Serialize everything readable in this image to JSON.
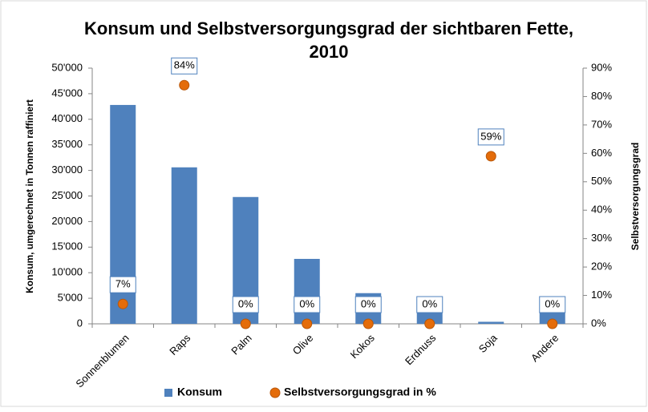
{
  "chart_data": {
    "type": "bar",
    "title": [
      "Konsum und Selbstversorgungsgrad der sichtbaren Fette,",
      "2010"
    ],
    "ylabel": "Konsum, umgerechnet in Tonnen raffiniert",
    "y2label": "Selbstversorgungsgrad",
    "categories": [
      "Sonnenblumen",
      "Raps",
      "Palm",
      "Olive",
      "Kokos",
      "Erdnuss",
      "Soja",
      "Andere"
    ],
    "series": [
      {
        "name": "Konsum",
        "color": "#4f81bd",
        "values": [
          42800,
          30600,
          24800,
          12700,
          6000,
          5300,
          400,
          4900
        ]
      },
      {
        "name": "Selbstversorgungsgrad in %",
        "color": "#e46c0a",
        "axis": "y2",
        "values": [
          7,
          84,
          0,
          0,
          0,
          0,
          59,
          0
        ],
        "value_labels": [
          "7%",
          "84%",
          "0%",
          "0%",
          "0%",
          "0%",
          "59%",
          "0%"
        ]
      }
    ],
    "ylim": [
      0,
      50000
    ],
    "yticks": [
      0,
      {
        "value": 5000,
        "label": "5'000"
      },
      {
        "value": 10000,
        "label": "10'000"
      },
      {
        "value": 15000,
        "label": "15'000"
      },
      {
        "value": 20000,
        "label": "20'000"
      },
      {
        "value": 25000,
        "label": "25'000"
      },
      {
        "value": 30000,
        "label": "30'000"
      },
      {
        "value": 35000,
        "label": "35'000"
      },
      {
        "value": 40000,
        "label": "40'000"
      },
      {
        "value": 45000,
        "label": "45'000"
      },
      {
        "value": 50000,
        "label": "50'000"
      }
    ],
    "y2lim": [
      0,
      90
    ],
    "y2ticks": [
      {
        "value": 0,
        "label": "0%"
      },
      {
        "value": 10,
        "label": "10%"
      },
      {
        "value": 20,
        "label": "20%"
      },
      {
        "value": 30,
        "label": "30%"
      },
      {
        "value": 40,
        "label": "40%"
      },
      {
        "value": 50,
        "label": "50%"
      },
      {
        "value": 60,
        "label": "60%"
      },
      {
        "value": 70,
        "label": "70%"
      },
      {
        "value": 80,
        "label": "80%"
      },
      {
        "value": 90,
        "label": "90%"
      }
    ],
    "grid": false,
    "legend": "bottom"
  }
}
